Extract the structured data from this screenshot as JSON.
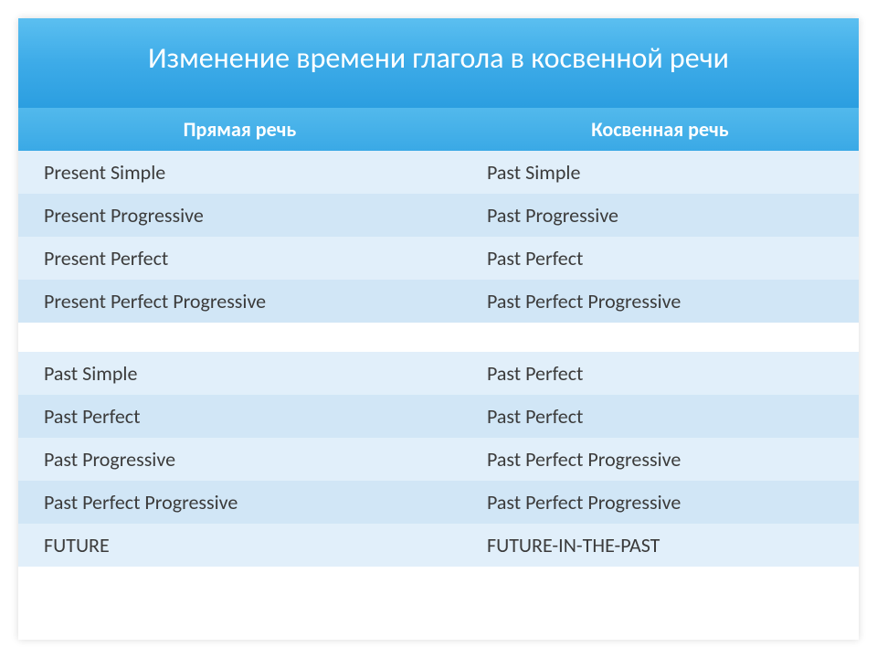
{
  "title": "Изменение времени глагола в косвенной речи",
  "table": {
    "headers": {
      "direct": "Прямая речь",
      "reported": "Косвенная речь"
    },
    "rows": [
      {
        "direct": "Present Simple",
        "reported": "Past Simple"
      },
      {
        "direct": "Present Progressive",
        "reported": "Past Progressive"
      },
      {
        "direct": "Present Perfect",
        "reported": "Past Perfect"
      },
      {
        "direct": "Present Perfect Progressive",
        "reported": "Past Perfect Progressive"
      },
      {
        "direct": "Past Simple",
        "reported": "Past Perfect"
      },
      {
        "direct": "Past Perfect",
        "reported": "Past Perfect"
      },
      {
        "direct": "Past Progressive",
        "reported": "Past Perfect Progressive"
      },
      {
        "direct": "Past Perfect Progressive",
        "reported": "Past Perfect Progressive"
      },
      {
        "direct": "FUTURE",
        "reported": "FUTURE-IN-THE-PAST"
      }
    ],
    "gap_after_index": 3
  },
  "colors": {
    "title_gradient_top": "#5bbff0",
    "title_gradient_bottom": "#2b9ee0",
    "header_gradient_top": "#52b9ec",
    "header_gradient_bottom": "#3aa9e6",
    "row_odd": "#e1effa",
    "row_even": "#d1e6f6",
    "text": "#3b3b3b",
    "header_text": "#ffffff"
  },
  "typography": {
    "title_fontsize": 32,
    "header_fontsize": 22,
    "cell_fontsize": 22,
    "font_family": "Segoe UI"
  },
  "layout": {
    "slide_width": 920,
    "slide_height": 680,
    "gap_row_height": 32
  }
}
